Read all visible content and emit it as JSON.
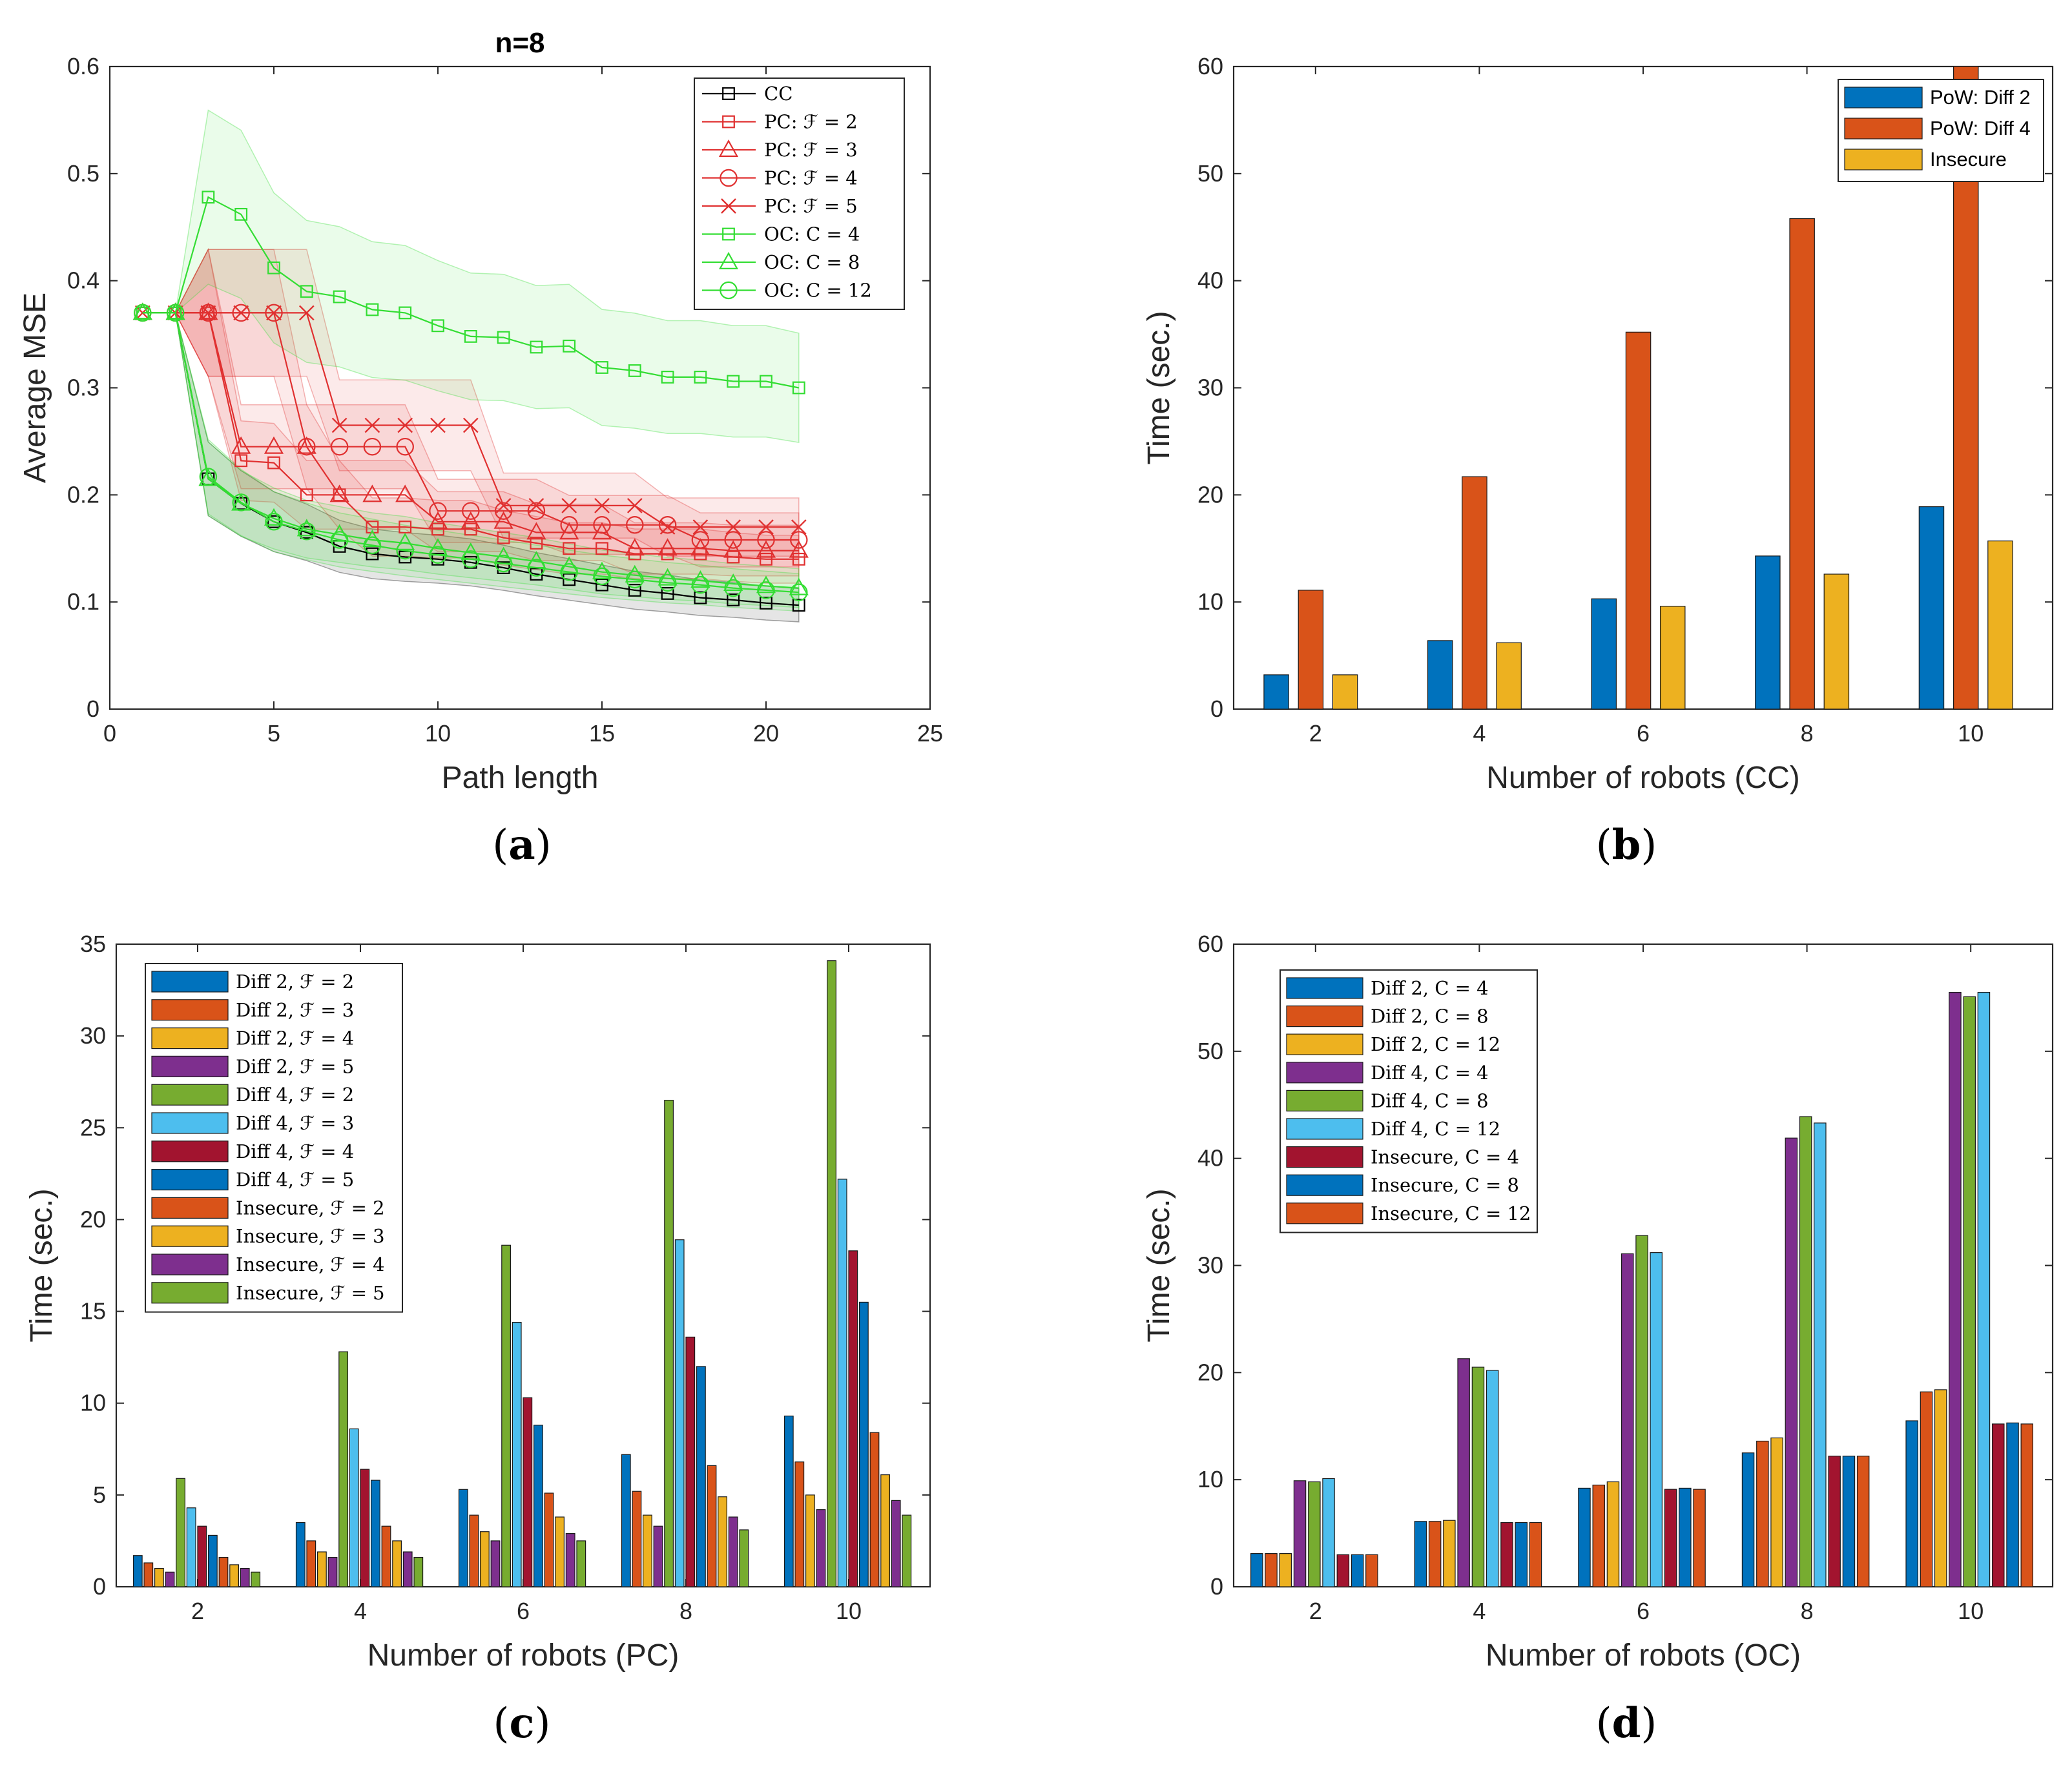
{
  "chart_data": [
    {
      "panel": "(a)",
      "type": "line",
      "title": "n=8",
      "xlabel": "Path length",
      "ylabel": "Average MSE",
      "xlim": [
        0,
        25
      ],
      "ylim": [
        0,
        0.6
      ],
      "xticks": [
        0,
        5,
        10,
        15,
        20,
        25
      ],
      "yticks": [
        0,
        0.1,
        0.2,
        0.3,
        0.4,
        0.5,
        0.6
      ],
      "legend_position": "top-right",
      "shaded_bands": true,
      "series": [
        {
          "name": "CC",
          "color": "#000000",
          "marker": "square",
          "x": [
            1,
            2,
            3,
            4,
            5,
            6,
            7,
            8,
            9,
            10,
            11,
            12,
            13,
            14,
            15,
            16,
            17,
            18,
            19,
            20,
            21
          ],
          "y": [
            0.37,
            0.37,
            0.215,
            0.192,
            0.175,
            0.165,
            0.152,
            0.145,
            0.142,
            0.14,
            0.137,
            0.132,
            0.126,
            0.121,
            0.116,
            0.111,
            0.108,
            0.104,
            0.102,
            0.099,
            0.097
          ]
        },
        {
          "name": "PC: ℱ = 2",
          "color": "#e03030",
          "marker": "square",
          "x": [
            1,
            2,
            3,
            4,
            5,
            6,
            7,
            8,
            9,
            10,
            11,
            12,
            13,
            14,
            15,
            16,
            17,
            18,
            19,
            20,
            21
          ],
          "y": [
            0.37,
            0.37,
            0.37,
            0.232,
            0.23,
            0.2,
            0.2,
            0.17,
            0.17,
            0.168,
            0.168,
            0.16,
            0.155,
            0.15,
            0.15,
            0.145,
            0.145,
            0.145,
            0.142,
            0.14,
            0.14
          ]
        },
        {
          "name": "PC: ℱ = 3",
          "color": "#e03030",
          "marker": "triangle",
          "x": [
            1,
            2,
            3,
            4,
            5,
            6,
            7,
            8,
            9,
            10,
            11,
            12,
            13,
            14,
            15,
            16,
            17,
            18,
            19,
            20,
            21
          ],
          "y": [
            0.37,
            0.37,
            0.37,
            0.245,
            0.245,
            0.245,
            0.2,
            0.2,
            0.2,
            0.175,
            0.175,
            0.175,
            0.165,
            0.165,
            0.165,
            0.15,
            0.15,
            0.15,
            0.148,
            0.148,
            0.148
          ]
        },
        {
          "name": "PC: ℱ = 4",
          "color": "#e03030",
          "marker": "circle",
          "x": [
            1,
            2,
            3,
            4,
            5,
            6,
            7,
            8,
            9,
            10,
            11,
            12,
            13,
            14,
            15,
            16,
            17,
            18,
            19,
            20,
            21
          ],
          "y": [
            0.37,
            0.37,
            0.37,
            0.37,
            0.37,
            0.245,
            0.245,
            0.245,
            0.245,
            0.185,
            0.185,
            0.185,
            0.185,
            0.172,
            0.172,
            0.172,
            0.172,
            0.158,
            0.158,
            0.158,
            0.158
          ]
        },
        {
          "name": "PC: ℱ = 5",
          "color": "#e03030",
          "marker": "x",
          "x": [
            1,
            2,
            3,
            4,
            5,
            6,
            7,
            8,
            9,
            10,
            11,
            12,
            13,
            14,
            15,
            16,
            17,
            18,
            19,
            20,
            21
          ],
          "y": [
            0.37,
            0.37,
            0.37,
            0.37,
            0.37,
            0.37,
            0.265,
            0.265,
            0.265,
            0.265,
            0.265,
            0.19,
            0.19,
            0.19,
            0.19,
            0.19,
            0.17,
            0.17,
            0.17,
            0.17,
            0.17
          ]
        },
        {
          "name": "OC: C = 4",
          "color": "#33dd33",
          "marker": "square",
          "x": [
            1,
            2,
            3,
            4,
            5,
            6,
            7,
            8,
            9,
            10,
            11,
            12,
            13,
            14,
            15,
            16,
            17,
            18,
            19,
            20,
            21
          ],
          "y": [
            0.37,
            0.37,
            0.478,
            0.462,
            0.412,
            0.39,
            0.385,
            0.373,
            0.37,
            0.358,
            0.348,
            0.347,
            0.338,
            0.339,
            0.319,
            0.316,
            0.31,
            0.31,
            0.306,
            0.306,
            0.3
          ]
        },
        {
          "name": "OC: C = 8",
          "color": "#33dd33",
          "marker": "triangle",
          "x": [
            1,
            2,
            3,
            4,
            5,
            6,
            7,
            8,
            9,
            10,
            11,
            12,
            13,
            14,
            15,
            16,
            17,
            18,
            19,
            20,
            21
          ],
          "y": [
            0.37,
            0.37,
            0.215,
            0.192,
            0.178,
            0.168,
            0.163,
            0.158,
            0.155,
            0.15,
            0.146,
            0.142,
            0.138,
            0.133,
            0.128,
            0.125,
            0.122,
            0.12,
            0.117,
            0.115,
            0.113
          ]
        },
        {
          "name": "OC: C = 12",
          "color": "#33dd33",
          "marker": "circle",
          "x": [
            1,
            2,
            3,
            4,
            5,
            6,
            7,
            8,
            9,
            10,
            11,
            12,
            13,
            14,
            15,
            16,
            17,
            18,
            19,
            20,
            21
          ],
          "y": [
            0.37,
            0.37,
            0.217,
            0.193,
            0.175,
            0.166,
            0.158,
            0.153,
            0.148,
            0.144,
            0.14,
            0.136,
            0.132,
            0.128,
            0.124,
            0.121,
            0.118,
            0.116,
            0.113,
            0.111,
            0.109
          ]
        }
      ]
    },
    {
      "panel": "(b)",
      "type": "bar",
      "xlabel": "Number of robots (CC)",
      "ylabel": "Time (sec.)",
      "ylim": [
        0,
        60
      ],
      "yticks": [
        0,
        10,
        20,
        30,
        40,
        50,
        60
      ],
      "categories": [
        "2",
        "4",
        "6",
        "8",
        "10"
      ],
      "legend_position": "top-right",
      "series": [
        {
          "name": "PoW: Diff 2",
          "color": "#0072BD",
          "values": [
            3.2,
            6.4,
            10.3,
            14.3,
            18.9
          ]
        },
        {
          "name": "PoW: Diff 4",
          "color": "#D95319",
          "values": [
            11.1,
            21.7,
            35.2,
            45.8,
            60.0
          ]
        },
        {
          "name": "Insecure",
          "color": "#EDB120",
          "values": [
            3.2,
            6.2,
            9.6,
            12.6,
            15.7
          ]
        }
      ]
    },
    {
      "panel": "(c)",
      "type": "bar",
      "xlabel": "Number of robots (PC)",
      "ylabel": "Time (sec.)",
      "ylim": [
        0,
        35
      ],
      "yticks": [
        0,
        5,
        10,
        15,
        20,
        25,
        30,
        35
      ],
      "categories": [
        "2",
        "4",
        "6",
        "8",
        "10"
      ],
      "legend_position": "top-left",
      "series": [
        {
          "name": "Diff 2, ℱ = 2",
          "color": "#0072BD",
          "values": [
            1.7,
            3.5,
            5.3,
            7.2,
            9.3
          ]
        },
        {
          "name": "Diff 2, ℱ = 3",
          "color": "#D95319",
          "values": [
            1.3,
            2.5,
            3.9,
            5.2,
            6.8
          ]
        },
        {
          "name": "Diff 2, ℱ = 4",
          "color": "#EDB120",
          "values": [
            1.0,
            1.9,
            3.0,
            3.9,
            5.0
          ]
        },
        {
          "name": "Diff 2, ℱ = 5",
          "color": "#7E2F8E",
          "values": [
            0.8,
            1.6,
            2.5,
            3.3,
            4.2
          ]
        },
        {
          "name": "Diff 4, ℱ = 2",
          "color": "#77AC30",
          "values": [
            5.9,
            12.8,
            18.6,
            26.5,
            34.1
          ]
        },
        {
          "name": "Diff 4, ℱ = 3",
          "color": "#4DBEEE",
          "values": [
            4.3,
            8.6,
            14.4,
            18.9,
            22.2
          ]
        },
        {
          "name": "Diff 4, ℱ = 4",
          "color": "#A2142F",
          "values": [
            3.3,
            6.4,
            10.3,
            13.6,
            18.3
          ]
        },
        {
          "name": "Diff 4, ℱ = 5",
          "color": "#0072BD",
          "values": [
            2.8,
            5.8,
            8.8,
            12.0,
            15.5
          ]
        },
        {
          "name": "Insecure, ℱ = 2",
          "color": "#D95319",
          "values": [
            1.6,
            3.3,
            5.1,
            6.6,
            8.4
          ]
        },
        {
          "name": "Insecure, ℱ = 3",
          "color": "#EDB120",
          "values": [
            1.2,
            2.5,
            3.8,
            4.9,
            6.1
          ]
        },
        {
          "name": "Insecure, ℱ = 4",
          "color": "#7E2F8E",
          "values": [
            1.0,
            1.9,
            2.9,
            3.8,
            4.7
          ]
        },
        {
          "name": "Insecure, ℱ = 5",
          "color": "#77AC30",
          "values": [
            0.8,
            1.6,
            2.5,
            3.1,
            3.9
          ]
        }
      ]
    },
    {
      "panel": "(d)",
      "type": "bar",
      "xlabel": "Number of robots (OC)",
      "ylabel": "Time (sec.)",
      "ylim": [
        0,
        60
      ],
      "yticks": [
        0,
        10,
        20,
        30,
        40,
        50,
        60
      ],
      "categories": [
        "2",
        "4",
        "6",
        "8",
        "10"
      ],
      "legend_position": "top-left",
      "series": [
        {
          "name": "Diff 2, C = 4",
          "color": "#0072BD",
          "values": [
            3.1,
            6.1,
            9.2,
            12.5,
            15.5
          ]
        },
        {
          "name": "Diff 2, C = 8",
          "color": "#D95319",
          "values": [
            3.1,
            6.1,
            9.5,
            13.6,
            18.2
          ]
        },
        {
          "name": "Diff 2, C = 12",
          "color": "#EDB120",
          "values": [
            3.1,
            6.2,
            9.8,
            13.9,
            18.4
          ]
        },
        {
          "name": "Diff 4, C = 4",
          "color": "#7E2F8E",
          "values": [
            9.9,
            21.3,
            31.1,
            41.9,
            55.5
          ]
        },
        {
          "name": "Diff 4, C = 8",
          "color": "#77AC30",
          "values": [
            9.8,
            20.5,
            32.8,
            43.9,
            55.1
          ]
        },
        {
          "name": "Diff 4, C = 12",
          "color": "#4DBEEE",
          "values": [
            10.1,
            20.2,
            31.2,
            43.3,
            55.5
          ]
        },
        {
          "name": "Insecure, C = 4",
          "color": "#A2142F",
          "values": [
            3.0,
            6.0,
            9.1,
            12.2,
            15.2
          ]
        },
        {
          "name": "Insecure, C = 8",
          "color": "#0072BD",
          "values": [
            3.0,
            6.0,
            9.2,
            12.2,
            15.3
          ]
        },
        {
          "name": "Insecure, C = 12",
          "color": "#D95319",
          "values": [
            3.0,
            6.0,
            9.1,
            12.2,
            15.2
          ]
        }
      ]
    }
  ]
}
